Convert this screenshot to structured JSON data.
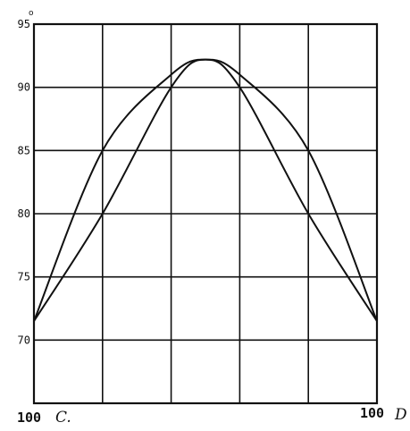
{
  "chart_data": {
    "type": "line",
    "title": "",
    "xlabel": "",
    "ylabel": "",
    "xlim": [
      0,
      100
    ],
    "ylim": [
      65,
      95
    ],
    "grid": true,
    "y_ticks": [
      70,
      75,
      80,
      85,
      90,
      95
    ],
    "y_tick_labels": [
      "70",
      "75",
      "80",
      "85",
      "90",
      "95"
    ],
    "y_unit_label": "o",
    "left_label_number": "100",
    "left_label_letter": "C.",
    "right_label_number": "100",
    "right_label_letter": "D",
    "series": [
      {
        "x": [
          0,
          20,
          40,
          50,
          60,
          80,
          100
        ],
        "y": [
          71.5,
          85,
          91,
          92.2,
          91,
          85,
          71.5
        ]
      },
      {
        "x": [
          0,
          20,
          40,
          50,
          60,
          80,
          100
        ],
        "y": [
          71.5,
          80,
          90,
          92.2,
          90,
          80,
          71.5
        ]
      }
    ]
  }
}
